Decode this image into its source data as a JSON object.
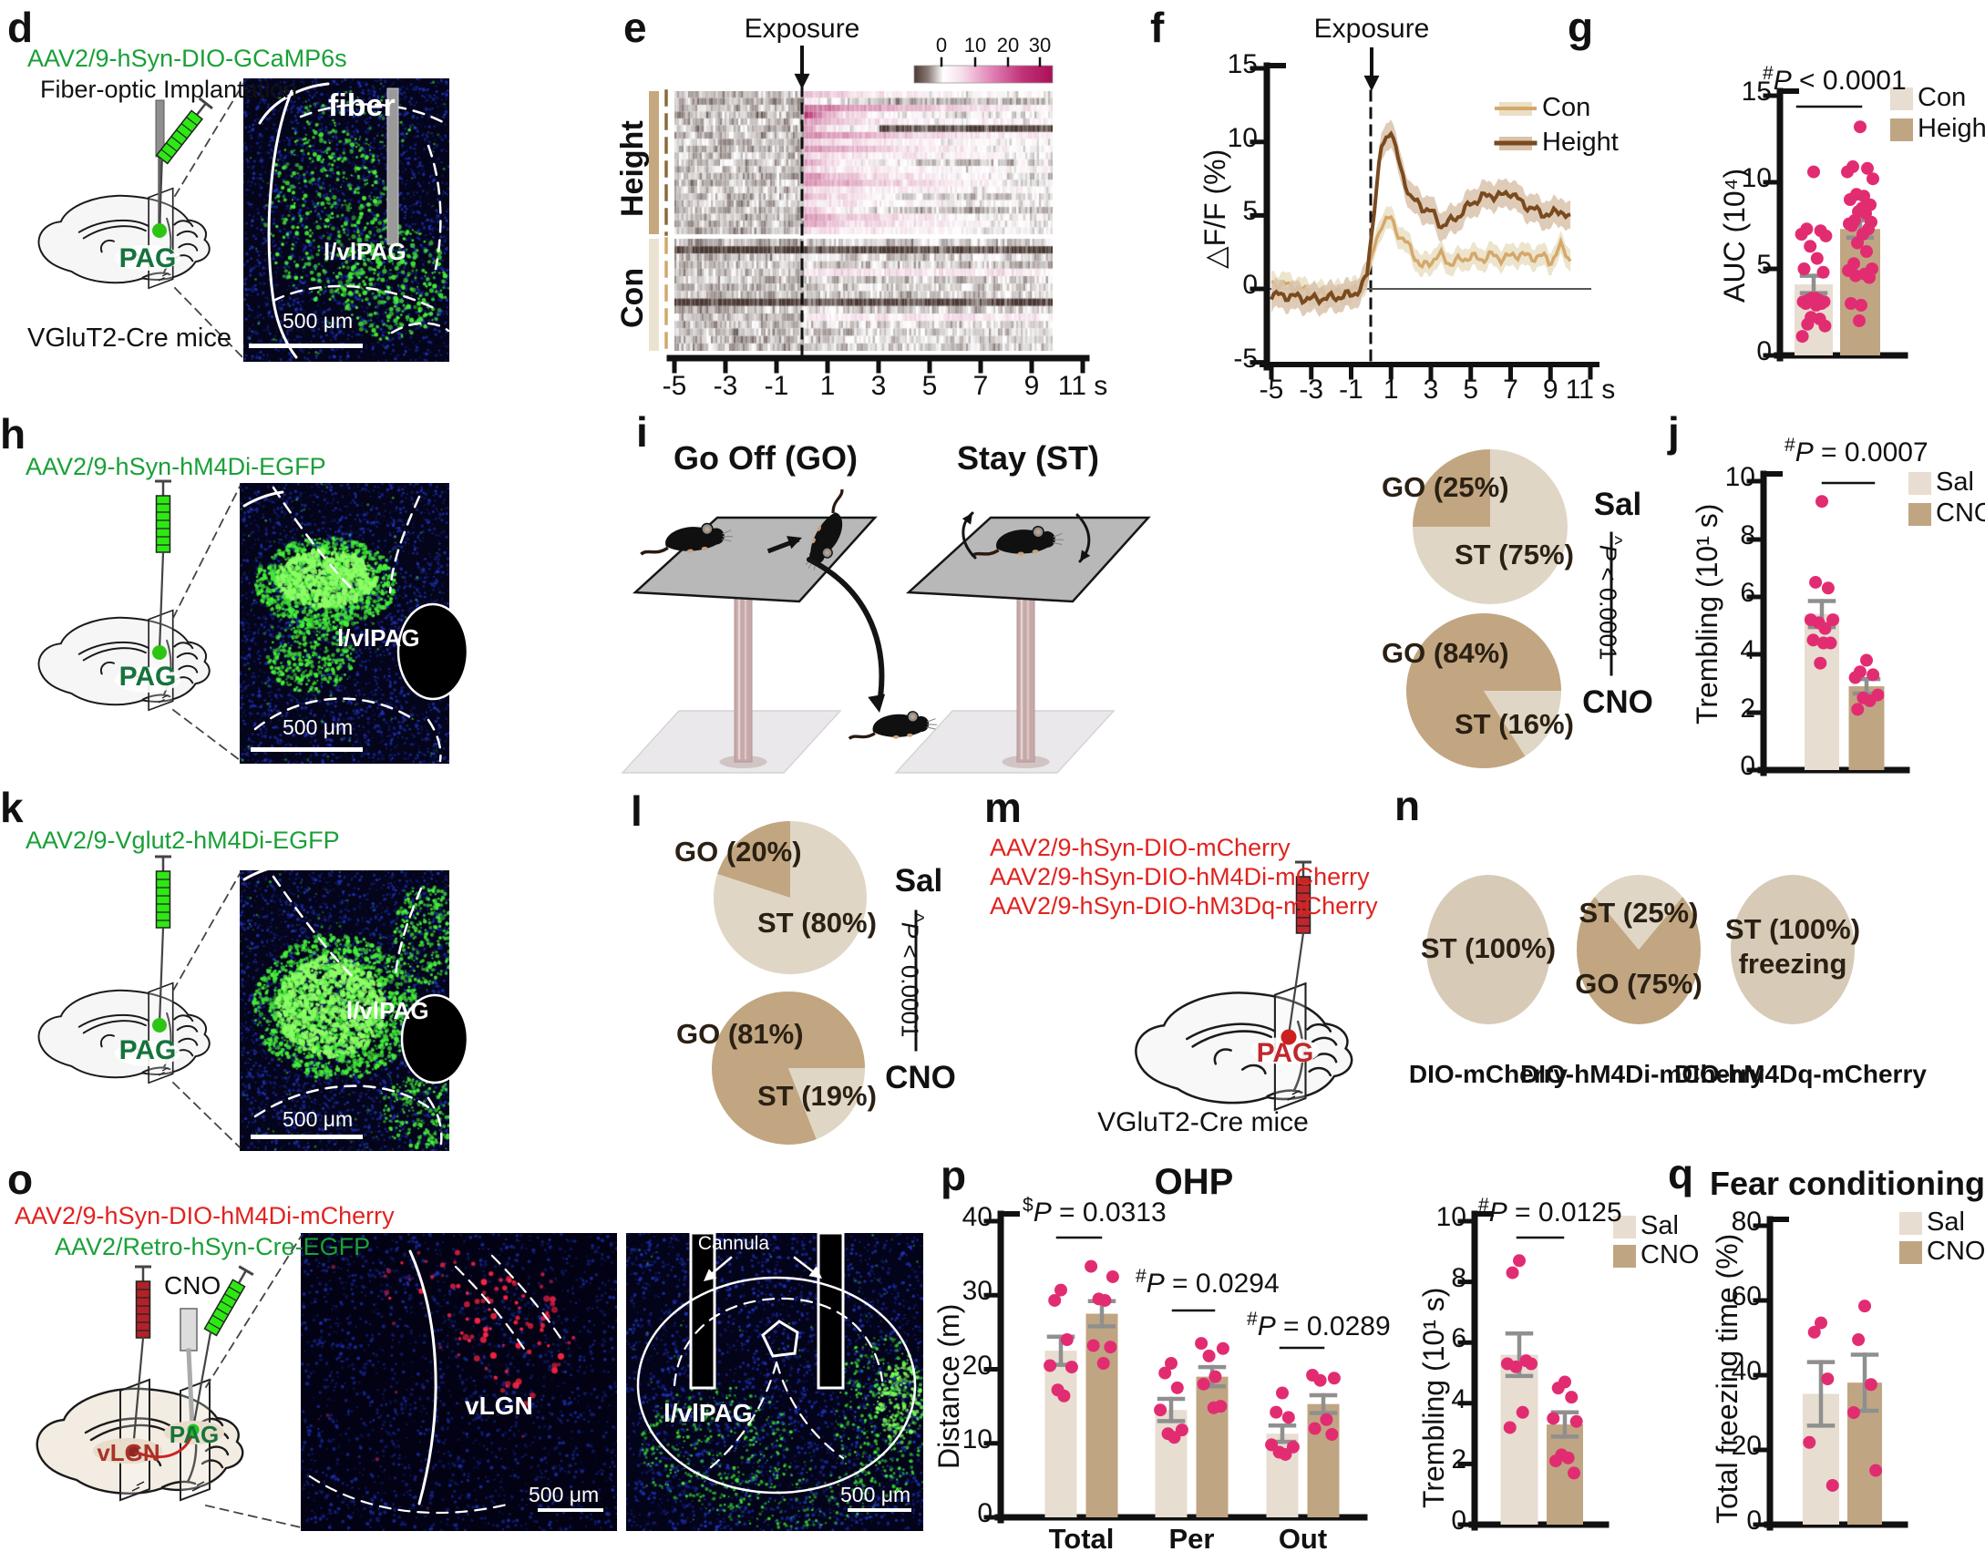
{
  "colors": {
    "accent_dot": "#e22c72",
    "bar_light": "#e7ddd1",
    "bar_dark": "#c0a583",
    "pie_light": "#e0d6c5",
    "pie_dark": "#c1a681",
    "pie_full": "#d7cab7",
    "line_con": "#d4a86a",
    "line_height": "#7a4a1f",
    "band_con": "#eadfc4",
    "band_height": "#d9c3ab",
    "green_label": "#1aa038",
    "dark_green": "#15733b",
    "red_label": "#e0231f",
    "dark_red": "#a93226",
    "error_bar": "#8f8f8f",
    "heat_neg": "#4a3833",
    "heat_pos": "#ab0f58",
    "syringe_green": "#2ee814",
    "syringe_red": "#c0272d"
  },
  "panels": {
    "d": {
      "label": "d",
      "virus_line": "AAV2/9-hSyn-DIO-GCaMP6s",
      "procedure": "Fiber-optic Implantation",
      "brain_region": "PAG",
      "mouse_line": "VGluT2-Cre mice",
      "image": {
        "annotation": "fiber",
        "region": "l/vlPAG",
        "scale": "500 μm"
      }
    },
    "e": {
      "label": "e",
      "exposure": "Exposure",
      "group_top": "Height",
      "group_bottom": "Con"
    },
    "f": {
      "label": "f",
      "exposure": "Exposure"
    },
    "g": {
      "label": "g"
    },
    "h": {
      "label": "h",
      "virus_line": "AAV2/9-hSyn-hM4Di-EGFP",
      "brain_region": "PAG",
      "image": {
        "region": "l/vlPAG",
        "scale": "500 μm"
      }
    },
    "i": {
      "label": "i",
      "title_left": "Go Off (GO)",
      "title_right": "Stay (ST)",
      "pies": [
        {
          "treatment": "Sal",
          "slices": [
            "GO (25%)",
            "ST (75%)"
          ]
        },
        {
          "treatment": "CNO",
          "slices": [
            "GO (84%)",
            "ST (16%)"
          ]
        }
      ],
      "pvalue": "^P < 0.0001"
    },
    "j": {
      "label": "j"
    },
    "k": {
      "label": "k",
      "virus_line": "AAV2/9-Vglut2-hM4Di-EGFP",
      "brain_region": "PAG",
      "image": {
        "region": "l/vlPAG",
        "scale": "500 μm"
      }
    },
    "l": {
      "label": "l",
      "pies": [
        {
          "treatment": "Sal",
          "slices": [
            "GO (20%)",
            "ST (80%)"
          ]
        },
        {
          "treatment": "CNO",
          "slices": [
            "GO (81%)",
            "ST (19%)"
          ]
        }
      ],
      "pvalue": "^P < 0.0001"
    },
    "m": {
      "label": "m",
      "virus_lines": [
        "AAV2/9-hSyn-DIO-mCherry",
        "AAV2/9-hSyn-DIO-hM4Di-mCherry",
        "AAV2/9-hSyn-DIO-hM3Dq-mCherry"
      ],
      "brain_region": "PAG",
      "mouse_line": "VGluT2-Cre mice"
    },
    "n": {
      "label": "n",
      "pies": [
        {
          "label": "ST (100%)",
          "name": "DIO-mCherry"
        },
        {
          "slices": [
            "ST (25%)",
            "GO (75%)"
          ],
          "name": "DIO-hM4Di-mCherry"
        },
        {
          "label": "ST (100%)",
          "sub": "freezing",
          "name": "DIO-hM4Dq-mCherry"
        }
      ]
    },
    "o": {
      "label": "o",
      "virus_lines": [
        "AAV2/9-hSyn-DIO-hM4Di-mCherry",
        "AAV2/Retro-hSyn-Cre-EGFP"
      ],
      "cno": "CNO",
      "region_vlgn": "vLGN",
      "region_pag": "PAG",
      "images": [
        {
          "region": "vLGN",
          "scale": "500 μm"
        },
        {
          "region": "l/vlPAG",
          "annotation": "Cannula",
          "scale": "500 μm"
        }
      ]
    },
    "p": {
      "label": "p"
    },
    "q": {
      "label": "q"
    }
  },
  "chart_data": [
    {
      "id": "e-heatmap",
      "type": "heatmap",
      "title": "Exposure",
      "groups": [
        {
          "name": "Height",
          "rows": 21
        },
        {
          "name": "Con",
          "rows": 15
        }
      ],
      "x_range_s": [
        -5,
        9.8
      ],
      "x_ticks": [
        -5,
        -3,
        -1,
        1,
        3,
        5,
        7,
        9,
        11
      ],
      "x_unit": "s",
      "exposure_at_s": 0,
      "colorbar": {
        "ticks": [
          0,
          10,
          20,
          30
        ],
        "min": -10,
        "max": 35
      },
      "description": "Per-trial ΔF/F heatmap: Height trials show strong positive (pink) responses after exposure; Con trials stay near baseline (gray-brown)."
    },
    {
      "id": "f-line",
      "type": "line",
      "ylabel": "△F/F (%)",
      "ylim": [
        -5,
        15
      ],
      "yticks": [
        15,
        10,
        5,
        0,
        -5
      ],
      "x_ticks": [
        -5,
        -3,
        -1,
        1,
        3,
        5,
        7,
        9,
        11
      ],
      "x_unit": "s",
      "exposure_at_s": 0,
      "legend": [
        "Con",
        "Height"
      ],
      "x": [
        -5,
        -4,
        -3,
        -2,
        -1,
        -0.5,
        -0.2,
        0.2,
        0.5,
        1,
        1.5,
        2,
        2.5,
        3,
        3.5,
        4,
        4.5,
        5,
        5.5,
        6,
        6.5,
        7,
        7.5,
        8,
        8.5,
        9,
        9.5,
        10
      ],
      "series": [
        {
          "name": "Con",
          "y": [
            0.4,
            0.2,
            -0.3,
            -0.4,
            -0.2,
            0.1,
            0.8,
            3.0,
            4.4,
            4.8,
            3.4,
            2.8,
            1.4,
            1.9,
            2.3,
            1.7,
            2.0,
            2.2,
            2.0,
            2.3,
            2.1,
            2.2,
            2.4,
            2.1,
            2.3,
            1.8,
            2.9,
            2.0
          ]
        },
        {
          "name": "Height",
          "y": [
            -0.4,
            -0.5,
            -0.7,
            -0.6,
            -0.4,
            0.0,
            1.0,
            6.0,
            9.5,
            10.9,
            8.0,
            6.2,
            5.6,
            5.3,
            4.3,
            4.6,
            5.1,
            5.8,
            6.2,
            6.4,
            6.3,
            6.6,
            5.9,
            5.5,
            5.2,
            5.0,
            5.4,
            4.7
          ]
        }
      ]
    },
    {
      "id": "g-bar",
      "type": "bar",
      "ylabel": "AUC (10⁴)",
      "ylim": [
        0,
        15
      ],
      "yticks": [
        0,
        5,
        10,
        15
      ],
      "categories": [
        "Con",
        "Height"
      ],
      "values": [
        4.1,
        7.3
      ],
      "errors": [
        0.5,
        0.5
      ],
      "dots": [
        [
          10.6,
          7.3,
          7.2,
          7.0,
          6.9,
          6.3,
          5.6,
          5.0,
          4.8,
          3.3,
          3.3,
          3.2,
          3.2,
          3.1,
          3.1,
          3.0,
          3.0,
          2.9,
          2.2,
          2.1,
          1.8,
          1.7,
          1.1
        ],
        [
          13.2,
          10.9,
          10.8,
          10.6,
          10.2,
          9.3,
          9.2,
          9.0,
          8.7,
          8.5,
          8.3,
          8.2,
          7.8,
          7.7,
          7.6,
          7.5,
          7.3,
          7.0,
          6.5,
          6.0,
          5.3,
          5.0,
          4.9,
          4.7,
          4.6,
          4.5,
          3.0,
          2.9,
          2.0
        ]
      ],
      "annotation": "#P < 0.0001",
      "legend": [
        "Con",
        "Height"
      ]
    },
    {
      "id": "i-pies",
      "type": "pie",
      "charts": [
        {
          "treatment": "Sal",
          "slices": [
            {
              "label": "GO",
              "pct": 25
            },
            {
              "label": "ST",
              "pct": 75
            }
          ]
        },
        {
          "treatment": "CNO",
          "slices": [
            {
              "label": "GO",
              "pct": 84
            },
            {
              "label": "ST",
              "pct": 16
            }
          ]
        }
      ],
      "comparison": "^P < 0.0001"
    },
    {
      "id": "j-bar",
      "type": "bar",
      "ylabel": "Trembling (10¹ s)",
      "ylim": [
        0,
        10
      ],
      "yticks": [
        0,
        2,
        4,
        6,
        8,
        10
      ],
      "categories": [
        "Sal",
        "CNO"
      ],
      "values": [
        5.4,
        2.9
      ],
      "errors": [
        0.45,
        0.25
      ],
      "dots": [
        [
          9.3,
          6.5,
          6.3,
          5.2,
          5.2,
          5.1,
          4.9,
          4.5,
          4.4,
          4.4,
          3.7
        ],
        [
          3.8,
          3.4,
          3.3,
          3.2,
          2.6,
          2.5,
          2.4,
          2.1
        ]
      ],
      "annotation": "#P = 0.0007",
      "legend": [
        "Sal",
        "CNO"
      ]
    },
    {
      "id": "l-pies",
      "type": "pie",
      "charts": [
        {
          "treatment": "Sal",
          "slices": [
            {
              "label": "GO",
              "pct": 20
            },
            {
              "label": "ST",
              "pct": 80
            }
          ]
        },
        {
          "treatment": "CNO",
          "slices": [
            {
              "label": "GO",
              "pct": 81
            },
            {
              "label": "ST",
              "pct": 19
            }
          ]
        }
      ],
      "comparison": "^P < 0.0001"
    },
    {
      "id": "n-pies",
      "type": "pie",
      "charts": [
        {
          "name": "DIO-mCherry",
          "slices": [
            {
              "label": "ST",
              "pct": 100
            }
          ]
        },
        {
          "name": "DIO-hM4Di-mCherry",
          "slices": [
            {
              "label": "ST",
              "pct": 25
            },
            {
              "label": "GO",
              "pct": 75
            }
          ]
        },
        {
          "name": "DIO-hM4Dq-mCherry",
          "slices": [
            {
              "label": "ST (freezing)",
              "pct": 100
            }
          ]
        }
      ]
    },
    {
      "id": "p-distance",
      "type": "grouped-bar",
      "title": "OHP",
      "ylabel": "Distance (m)",
      "ylim": [
        0,
        40
      ],
      "yticks": [
        0,
        10,
        20,
        30,
        40
      ],
      "categories": [
        "Total",
        "Per",
        "Out"
      ],
      "series": [
        {
          "name": "Sal",
          "values": [
            22.5,
            14.5,
            11.3
          ],
          "errors": [
            1.9,
            1.5,
            1.1
          ],
          "dots": [
            [
              30.7,
              29.3,
              24.0,
              20.5,
              20.3,
              17.2,
              16.4
            ],
            [
              20.8,
              19.5,
              17.5,
              14.5,
              11.8,
              11.3,
              10.8
            ],
            [
              16.8,
              14.2,
              13.5,
              9.8,
              9.5,
              8.8,
              8.5
            ]
          ]
        },
        {
          "name": "CNO",
          "values": [
            27.5,
            19.0,
            15.3
          ],
          "errors": [
            1.7,
            1.3,
            1.2
          ],
          "dots": [
            [
              33.9,
              32.5,
              29.5,
              29.3,
              23.2,
              23.0,
              20.8
            ],
            [
              23.5,
              22.8,
              21.8,
              19.0,
              18.0,
              15.0,
              14.8
            ],
            [
              19.2,
              18.8,
              18.5,
              13.2,
              12.0,
              11.2
            ]
          ]
        }
      ],
      "annotations": [
        "$P = 0.0313",
        "#P = 0.0294",
        "#P = 0.0289"
      ]
    },
    {
      "id": "p-trembling",
      "type": "bar",
      "ylabel": "Trembling (10¹ s)",
      "ylim": [
        0,
        10
      ],
      "yticks": [
        0,
        2,
        4,
        6,
        8,
        10
      ],
      "categories": [
        "Sal",
        "CNO"
      ],
      "values": [
        5.6,
        3.3
      ],
      "errors": [
        0.7,
        0.4
      ],
      "dots": [
        [
          8.7,
          8.3,
          5.4,
          5.3,
          5.3,
          5.2,
          3.7,
          3.2
        ],
        [
          4.7,
          4.5,
          4.2,
          3.5,
          3.4,
          2.3,
          2.2,
          2.1,
          1.7
        ]
      ],
      "annotation": "#P = 0.0125",
      "legend": [
        "Sal",
        "CNO"
      ]
    },
    {
      "id": "q-bar",
      "type": "bar",
      "title": "Fear conditioning",
      "ylabel": "Total freezing time (%)",
      "ylim": [
        0,
        80
      ],
      "yticks": [
        0,
        20,
        40,
        60,
        80
      ],
      "categories": [
        "Sal",
        "CNO"
      ],
      "values": [
        35,
        38
      ],
      "errors": [
        8.5,
        7.5
      ],
      "dots": [
        [
          54,
          51.5,
          39,
          22,
          10.5
        ],
        [
          58.5,
          49.5,
          37.5,
          30,
          14.5
        ]
      ],
      "legend": [
        "Sal",
        "CNO"
      ]
    }
  ]
}
